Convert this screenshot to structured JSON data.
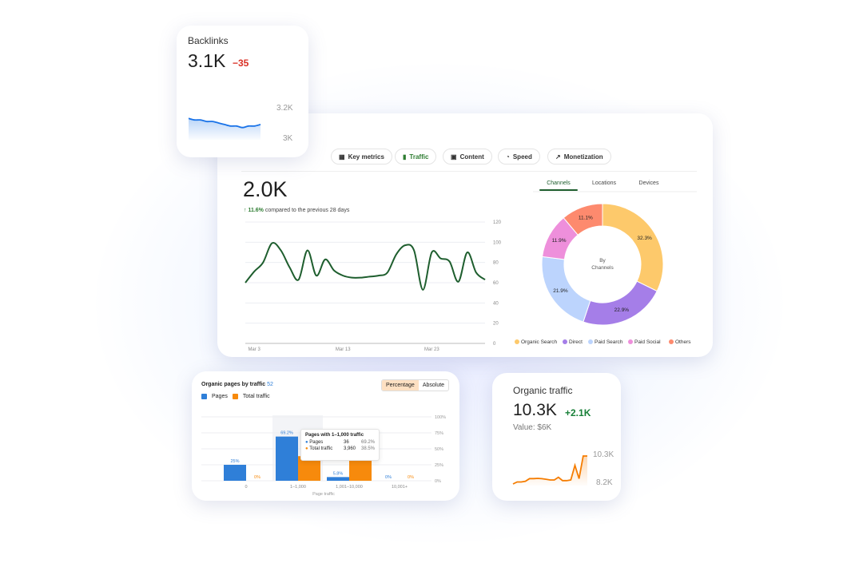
{
  "backlinks": {
    "title": "Backlinks",
    "value": "3.1K",
    "delta": "−35",
    "axis_top": "3.2K",
    "axis_bottom": "3K",
    "series_k": [
      3.13,
      3.12,
      3.12,
      3.11,
      3.11,
      3.1,
      3.09,
      3.08,
      3.08,
      3.07,
      3.08,
      3.08,
      3.09
    ],
    "color": "#1a73e8"
  },
  "main": {
    "tabs": [
      {
        "label": "Key metrics",
        "icon": "grid-icon"
      },
      {
        "label": "Traffic",
        "icon": "bar-chart-icon",
        "active": true
      },
      {
        "label": "Content",
        "icon": "content-icon"
      },
      {
        "label": "Speed",
        "icon": "gauge-icon"
      },
      {
        "label": "Monetization",
        "icon": "trend-icon"
      }
    ],
    "value": "2.0K",
    "change": "↑ 11.6%",
    "change_text": "compared to the previous 28 days",
    "subtabs": [
      {
        "label": "Channels",
        "active": true
      },
      {
        "label": "Locations"
      },
      {
        "label": "Devices"
      }
    ],
    "donut_center": [
      "By",
      "Channels"
    ]
  },
  "pages": {
    "title": "Organic pages by traffic",
    "count": "52",
    "toggle": [
      "Percentage",
      "Absolute"
    ],
    "legend": [
      "Pages",
      "Total traffic"
    ],
    "tooltip": {
      "title": "Pages with 1–1,000 traffic",
      "rows": [
        {
          "label": "Pages",
          "value": "36",
          "pct": "69.2%"
        },
        {
          "label": "Total traffic",
          "value": "3,960",
          "pct": "38.5%"
        }
      ]
    }
  },
  "organic": {
    "title": "Organic traffic",
    "value": "10.3K",
    "delta": "+2.1K",
    "value_text": "Value: $6K",
    "axis_top": "10.3K",
    "axis_bottom": "8.2K",
    "series_k": [
      8.2,
      8.35,
      8.35,
      8.4,
      8.6,
      8.6,
      8.62,
      8.6,
      8.55,
      8.5,
      8.5,
      8.7,
      8.45,
      8.45,
      8.5,
      9.6,
      8.6,
      10.3,
      10.3
    ],
    "color": "#f57c00"
  },
  "chart_data": [
    {
      "type": "line",
      "x_ticks": [
        "Mar 3",
        "Mar 13",
        "Mar 23"
      ],
      "y_ticks": [
        0,
        20,
        40,
        60,
        80,
        100,
        120
      ],
      "ylim": [
        0,
        120
      ],
      "grid": true,
      "color": "#1e5e2e",
      "values": [
        60,
        71,
        80,
        99,
        92,
        75,
        63,
        92,
        67,
        83,
        72,
        67,
        65,
        65,
        66,
        67,
        70,
        88,
        97,
        92,
        53,
        90,
        84,
        81,
        61,
        90,
        70,
        63
      ]
    },
    {
      "type": "pie",
      "labels": [
        "Organic Search",
        "Direct",
        "Paid Search",
        "Paid Social",
        "Others"
      ],
      "values": [
        32.3,
        22.9,
        21.9,
        11.9,
        11.1
      ],
      "value_labels": [
        "32.3%",
        "22.9%",
        "21.9%",
        "11.9%",
        "11.1%"
      ],
      "colors": [
        "#fdc96b",
        "#a57ee8",
        "#bcd4fd",
        "#ee8fdb",
        "#fd8a6e"
      ],
      "legend": "bottom"
    },
    {
      "type": "bar",
      "xlabel": "Page traffic",
      "categories": [
        "0",
        "1–1,000",
        "1,001–10,000",
        "10,001+"
      ],
      "y_ticks": [
        "0%",
        "25%",
        "50%",
        "75%",
        "100%"
      ],
      "ylim": [
        0,
        100
      ],
      "series": [
        {
          "name": "Pages",
          "values": [
            25,
            69.2,
            5.8,
            0
          ],
          "labels": [
            "25%",
            "69.2%",
            "5.8%",
            "0%"
          ],
          "color": "#2f7fd8"
        },
        {
          "name": "Total traffic",
          "values": [
            0,
            38.5,
            61.5,
            0
          ],
          "labels": [
            "0%",
            "",
            "",
            "0%"
          ],
          "color": "#f78a0c"
        }
      ]
    }
  ]
}
